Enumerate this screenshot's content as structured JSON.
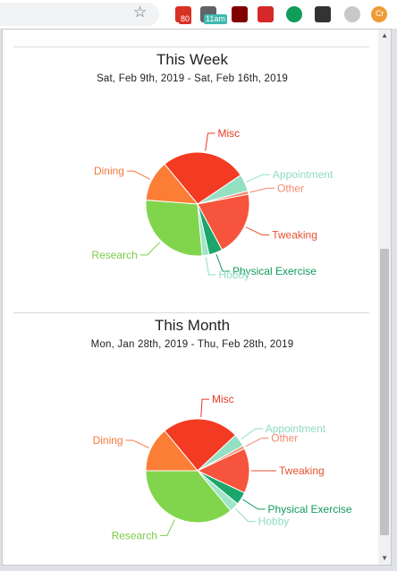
{
  "browser": {
    "extensions": [
      {
        "name": "gmail-extension",
        "badge": "80",
        "color": "#d93025",
        "badge_color": "#d93025"
      },
      {
        "name": "calendar-extension",
        "badge": "11am",
        "color": "#5f6368",
        "badge_color": "#3fb8b0"
      },
      {
        "name": "ublock-extension",
        "badge": "",
        "color": "#800000",
        "badge_color": ""
      },
      {
        "name": "s-extension",
        "badge": "",
        "color": "#d62828",
        "badge_color": ""
      },
      {
        "name": "hangouts-extension",
        "badge": "",
        "color": "#0f9d58",
        "badge_color": ""
      },
      {
        "name": "glasses-extension",
        "badge": "",
        "color": "#333333",
        "badge_color": ""
      },
      {
        "name": "circle-extension",
        "badge": "",
        "color": "#c8c8c8",
        "badge_color": ""
      },
      {
        "name": "profile-extension",
        "badge": "Cr",
        "color": "#f09a35",
        "badge_color": ""
      }
    ]
  },
  "week": {
    "title": "This Week",
    "range": "Sat, Feb 9th, 2019 - Sat, Feb 16th, 2019",
    "chart_data": {
      "type": "pie",
      "slices": [
        {
          "label": "Misc",
          "value": 25,
          "color": "#f33a22",
          "label_color": "#e53a22"
        },
        {
          "label": "Appointment",
          "value": 5,
          "color": "#94e0c3",
          "label_color": "#8fdcc0"
        },
        {
          "label": "Other",
          "value": 1,
          "color": "#fb8a72",
          "label_color": "#f08a6e"
        },
        {
          "label": "Tweaking",
          "value": 19,
          "color": "#f6543c",
          "label_color": "#e5512f"
        },
        {
          "label": "Physical Exercise",
          "value": 4,
          "color": "#1ca66b",
          "label_color": "#119a5e"
        },
        {
          "label": "Hobby",
          "value": 2,
          "color": "#9ee6c8",
          "label_color": "#8fdcc0"
        },
        {
          "label": "Research",
          "value": 26,
          "color": "#80d54c",
          "label_color": "#7ccb49"
        },
        {
          "label": "Dining",
          "value": 12,
          "color": "#fb7d36",
          "label_color": "#f4783a"
        }
      ]
    }
  },
  "month": {
    "title": "This Month",
    "range": "Mon, Jan 28th, 2019 - Thu, Feb 28th, 2019",
    "chart_data": {
      "type": "pie",
      "slices": [
        {
          "label": "Misc",
          "value": 24,
          "color": "#f33a22",
          "label_color": "#e53a22"
        },
        {
          "label": "Appointment",
          "value": 4,
          "color": "#94e0c3",
          "label_color": "#8fdcc0"
        },
        {
          "label": "Other",
          "value": 1,
          "color": "#fb8a72",
          "label_color": "#f08a6e"
        },
        {
          "label": "Tweaking",
          "value": 14,
          "color": "#f6543c",
          "label_color": "#e5512f"
        },
        {
          "label": "Physical Exercise",
          "value": 4,
          "color": "#1ca66b",
          "label_color": "#119a5e"
        },
        {
          "label": "Hobby",
          "value": 3,
          "color": "#9ee6c8",
          "label_color": "#8fdcc0"
        },
        {
          "label": "Research",
          "value": 36,
          "color": "#80d54c",
          "label_color": "#7ccb49"
        },
        {
          "label": "Dining",
          "value": 14,
          "color": "#fb7d36",
          "label_color": "#f4783a"
        }
      ]
    }
  }
}
